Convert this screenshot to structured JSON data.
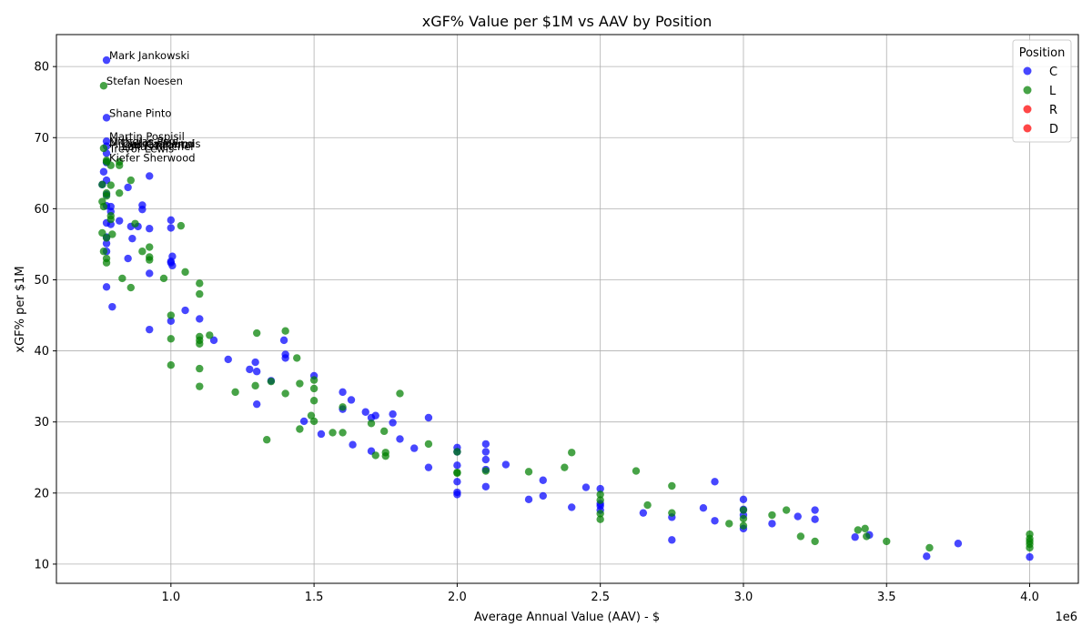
{
  "chart_data": {
    "type": "scatter",
    "title": "xGF% Value per $1M vs AAV by Position",
    "xlabel": "Average Annual Value (AAV) - $",
    "ylabel": "xGF% per $1M",
    "x_offset_label": "1e6",
    "xlim": [
      0.6,
      4.17
    ],
    "ylim": [
      7.3,
      84.5
    ],
    "x_ticks": [
      1.0,
      1.5,
      2.0,
      2.5,
      3.0,
      3.5,
      4.0
    ],
    "x_tick_labels": [
      "1.0",
      "1.5",
      "2.0",
      "2.5",
      "3.0",
      "3.5",
      "4.0"
    ],
    "y_ticks": [
      10,
      20,
      30,
      40,
      50,
      60,
      70,
      80
    ],
    "y_tick_labels": [
      "10",
      "20",
      "30",
      "40",
      "50",
      "60",
      "70",
      "80"
    ],
    "grid": true,
    "legend": {
      "title": "Position",
      "placement": "top-right"
    },
    "series": [
      {
        "name": "C",
        "color": "#0000ff",
        "points": [
          [
            0.775,
            80.9
          ],
          [
            0.775,
            72.8
          ],
          [
            0.775,
            69.5
          ],
          [
            0.775,
            68.8
          ],
          [
            0.775,
            67.8
          ],
          [
            0.775,
            66.5
          ],
          [
            0.765,
            65.2
          ],
          [
            0.775,
            64.0
          ],
          [
            0.76,
            63.4
          ],
          [
            0.775,
            62.0
          ],
          [
            0.775,
            60.4
          ],
          [
            0.79,
            60.3
          ],
          [
            0.79,
            59.6
          ],
          [
            0.775,
            58.0
          ],
          [
            0.79,
            57.8
          ],
          [
            0.82,
            58.3
          ],
          [
            0.775,
            56.0
          ],
          [
            0.775,
            55.1
          ],
          [
            0.775,
            54.0
          ],
          [
            0.775,
            49.0
          ],
          [
            0.795,
            46.2
          ],
          [
            0.85,
            63.0
          ],
          [
            0.925,
            64.6
          ],
          [
            0.86,
            57.5
          ],
          [
            0.885,
            57.5
          ],
          [
            0.9,
            60.5
          ],
          [
            0.9,
            59.9
          ],
          [
            0.925,
            57.2
          ],
          [
            0.865,
            55.8
          ],
          [
            0.85,
            53.0
          ],
          [
            0.925,
            50.9
          ],
          [
            0.925,
            43.0
          ],
          [
            1.0,
            58.4
          ],
          [
            1.0,
            57.3
          ],
          [
            1.0,
            52.6
          ],
          [
            1.0,
            52.4
          ],
          [
            1.005,
            53.3
          ],
          [
            1.005,
            52.0
          ],
          [
            1.0,
            44.2
          ],
          [
            1.05,
            45.7
          ],
          [
            1.1,
            44.5
          ],
          [
            1.15,
            41.5
          ],
          [
            1.2,
            38.8
          ],
          [
            1.275,
            37.4
          ],
          [
            1.295,
            38.4
          ],
          [
            1.3,
            37.1
          ],
          [
            1.3,
            32.5
          ],
          [
            1.35,
            35.8
          ],
          [
            1.395,
            41.5
          ],
          [
            1.4,
            39.5
          ],
          [
            1.4,
            39.0
          ],
          [
            1.5,
            36.5
          ],
          [
            1.465,
            30.1
          ],
          [
            1.525,
            28.3
          ],
          [
            1.6,
            34.2
          ],
          [
            1.6,
            31.8
          ],
          [
            1.63,
            33.1
          ],
          [
            1.635,
            26.8
          ],
          [
            1.68,
            31.4
          ],
          [
            1.7,
            30.6
          ],
          [
            1.715,
            30.9
          ],
          [
            1.775,
            31.1
          ],
          [
            1.775,
            29.9
          ],
          [
            1.7,
            25.9
          ],
          [
            1.8,
            27.6
          ],
          [
            1.85,
            26.3
          ],
          [
            1.9,
            30.6
          ],
          [
            1.9,
            23.6
          ],
          [
            2.0,
            26.4
          ],
          [
            2.0,
            25.8
          ],
          [
            2.0,
            23.9
          ],
          [
            2.0,
            21.6
          ],
          [
            2.0,
            20.1
          ],
          [
            2.0,
            19.8
          ],
          [
            2.1,
            26.9
          ],
          [
            2.1,
            25.8
          ],
          [
            2.1,
            24.7
          ],
          [
            2.1,
            23.3
          ],
          [
            2.1,
            20.9
          ],
          [
            2.17,
            24.0
          ],
          [
            2.25,
            19.1
          ],
          [
            2.3,
            21.8
          ],
          [
            2.3,
            19.6
          ],
          [
            2.4,
            18.0
          ],
          [
            2.45,
            20.8
          ],
          [
            2.5,
            20.6
          ],
          [
            2.5,
            18.5
          ],
          [
            2.5,
            18.2
          ],
          [
            2.5,
            17.6
          ],
          [
            2.65,
            17.2
          ],
          [
            2.75,
            16.6
          ],
          [
            2.75,
            13.4
          ],
          [
            2.86,
            17.9
          ],
          [
            2.9,
            21.6
          ],
          [
            2.9,
            16.1
          ],
          [
            3.0,
            19.1
          ],
          [
            3.0,
            17.7
          ],
          [
            3.0,
            16.9
          ],
          [
            3.0,
            15.0
          ],
          [
            3.1,
            15.7
          ],
          [
            3.19,
            16.7
          ],
          [
            3.25,
            17.6
          ],
          [
            3.25,
            16.3
          ],
          [
            3.39,
            13.8
          ],
          [
            3.44,
            14.1
          ],
          [
            3.64,
            11.1
          ],
          [
            3.75,
            12.9
          ],
          [
            4.0,
            11.0
          ]
        ]
      },
      {
        "name": "L",
        "color": "#008000",
        "points": [
          [
            0.765,
            77.3
          ],
          [
            0.765,
            68.5
          ],
          [
            0.775,
            66.8
          ],
          [
            0.775,
            66.6
          ],
          [
            0.79,
            66.1
          ],
          [
            0.82,
            66.6
          ],
          [
            0.82,
            66.1
          ],
          [
            0.76,
            63.4
          ],
          [
            0.79,
            63.3
          ],
          [
            0.775,
            62.2
          ],
          [
            0.775,
            61.8
          ],
          [
            0.76,
            61.0
          ],
          [
            0.765,
            60.3
          ],
          [
            0.79,
            59.0
          ],
          [
            0.79,
            58.5
          ],
          [
            0.76,
            56.6
          ],
          [
            0.775,
            55.9
          ],
          [
            0.795,
            56.4
          ],
          [
            0.765,
            54.0
          ],
          [
            0.775,
            53.0
          ],
          [
            0.775,
            52.4
          ],
          [
            0.86,
            64.0
          ],
          [
            0.82,
            62.2
          ],
          [
            0.875,
            57.9
          ],
          [
            0.9,
            54.0
          ],
          [
            0.925,
            54.6
          ],
          [
            0.925,
            53.2
          ],
          [
            0.925,
            52.8
          ],
          [
            0.83,
            50.2
          ],
          [
            0.86,
            48.9
          ],
          [
            0.975,
            50.2
          ],
          [
            1.035,
            57.6
          ],
          [
            1.05,
            51.1
          ],
          [
            1.1,
            49.5
          ],
          [
            1.1,
            48.0
          ],
          [
            1.0,
            45.0
          ],
          [
            1.0,
            41.7
          ],
          [
            1.0,
            38.0
          ],
          [
            1.1,
            42.0
          ],
          [
            1.1,
            41.5
          ],
          [
            1.1,
            41.0
          ],
          [
            1.135,
            42.2
          ],
          [
            1.1,
            37.5
          ],
          [
            1.1,
            35.0
          ],
          [
            1.225,
            34.2
          ],
          [
            1.3,
            42.5
          ],
          [
            1.4,
            42.8
          ],
          [
            1.295,
            35.1
          ],
          [
            1.335,
            27.5
          ],
          [
            1.35,
            35.7
          ],
          [
            1.4,
            34.0
          ],
          [
            1.44,
            39.0
          ],
          [
            1.45,
            35.4
          ],
          [
            1.45,
            29.0
          ],
          [
            1.5,
            35.9
          ],
          [
            1.5,
            34.7
          ],
          [
            1.5,
            33.0
          ],
          [
            1.49,
            30.9
          ],
          [
            1.5,
            30.1
          ],
          [
            1.565,
            28.5
          ],
          [
            1.6,
            32.1
          ],
          [
            1.6,
            28.5
          ],
          [
            1.7,
            29.8
          ],
          [
            1.715,
            25.3
          ],
          [
            1.745,
            28.7
          ],
          [
            1.75,
            25.7
          ],
          [
            1.75,
            25.2
          ],
          [
            1.8,
            34.0
          ],
          [
            1.9,
            26.9
          ],
          [
            2.0,
            25.8
          ],
          [
            2.0,
            22.9
          ],
          [
            2.0,
            22.8
          ],
          [
            2.1,
            23.1
          ],
          [
            2.25,
            23.0
          ],
          [
            2.375,
            23.6
          ],
          [
            2.4,
            25.7
          ],
          [
            2.5,
            19.8
          ],
          [
            2.5,
            19.0
          ],
          [
            2.5,
            17.1
          ],
          [
            2.5,
            16.3
          ],
          [
            2.625,
            23.1
          ],
          [
            2.665,
            18.3
          ],
          [
            2.75,
            21.0
          ],
          [
            2.75,
            17.2
          ],
          [
            2.95,
            15.7
          ],
          [
            3.0,
            17.6
          ],
          [
            3.0,
            16.4
          ],
          [
            3.0,
            15.4
          ],
          [
            3.1,
            16.9
          ],
          [
            3.15,
            17.6
          ],
          [
            3.2,
            13.9
          ],
          [
            3.25,
            13.2
          ],
          [
            3.4,
            14.8
          ],
          [
            3.425,
            15.0
          ],
          [
            3.43,
            13.9
          ],
          [
            3.5,
            13.2
          ],
          [
            3.65,
            12.3
          ],
          [
            4.0,
            14.2
          ],
          [
            4.0,
            13.6
          ],
          [
            4.0,
            13.2
          ],
          [
            4.0,
            12.8
          ],
          [
            4.0,
            12.3
          ]
        ]
      },
      {
        "name": "R",
        "color": "#ff0000",
        "points": []
      },
      {
        "name": "D",
        "color": "#ff0000",
        "points": []
      }
    ],
    "annotations": [
      {
        "text": "Mark Jankowski",
        "x": 0.775,
        "y": 80.9
      },
      {
        "text": "Stefan Noesen",
        "x": 0.765,
        "y": 77.3
      },
      {
        "text": "Shane Pinto",
        "x": 0.775,
        "y": 72.8
      },
      {
        "text": "Martin Pospisil",
        "x": 0.775,
        "y": 69.5
      },
      {
        "text": "Nicholas Paul",
        "x": 0.775,
        "y": 68.8
      },
      {
        "text": "Mikael Granlund",
        "x": 0.775,
        "y": 68.5
      },
      {
        "text": "Dakota Mermis",
        "x": 0.82,
        "y": 68.5
      },
      {
        "text": "Joel Kiviranta",
        "x": 0.82,
        "y": 68.4
      },
      {
        "text": "Lukas Reichel",
        "x": 0.82,
        "y": 68.1
      },
      {
        "text": "Trevor Lewis",
        "x": 0.775,
        "y": 67.8
      },
      {
        "text": "Kiefer Sherwood",
        "x": 0.775,
        "y": 66.5
      }
    ]
  }
}
